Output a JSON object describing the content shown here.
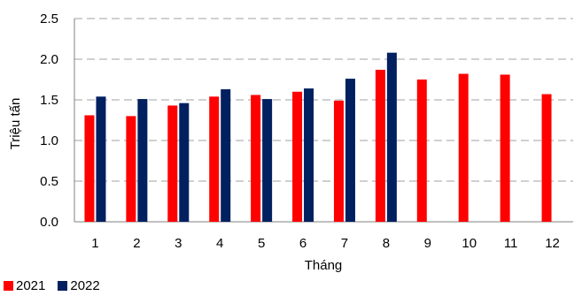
{
  "chart_data": {
    "type": "bar",
    "title": "",
    "xlabel": "Tháng",
    "ylabel": "Triệu tấn",
    "ylim": [
      0,
      2.5
    ],
    "yticks": [
      "0.0",
      "0.5",
      "1.0",
      "1.5",
      "2.0",
      "2.5"
    ],
    "categories": [
      "1",
      "2",
      "3",
      "4",
      "5",
      "6",
      "7",
      "8",
      "9",
      "10",
      "11",
      "12"
    ],
    "grid": "horizontal dashed",
    "legend_position": "bottom-left",
    "series": [
      {
        "name": "2021",
        "color": "#ff0000",
        "values": [
          1.31,
          1.3,
          1.43,
          1.54,
          1.56,
          1.6,
          1.49,
          1.87,
          1.75,
          1.82,
          1.81,
          1.57
        ]
      },
      {
        "name": "2022",
        "color": "#002060",
        "values": [
          1.54,
          1.51,
          1.46,
          1.63,
          1.51,
          1.64,
          1.76,
          2.08,
          null,
          null,
          null,
          null
        ]
      }
    ]
  }
}
